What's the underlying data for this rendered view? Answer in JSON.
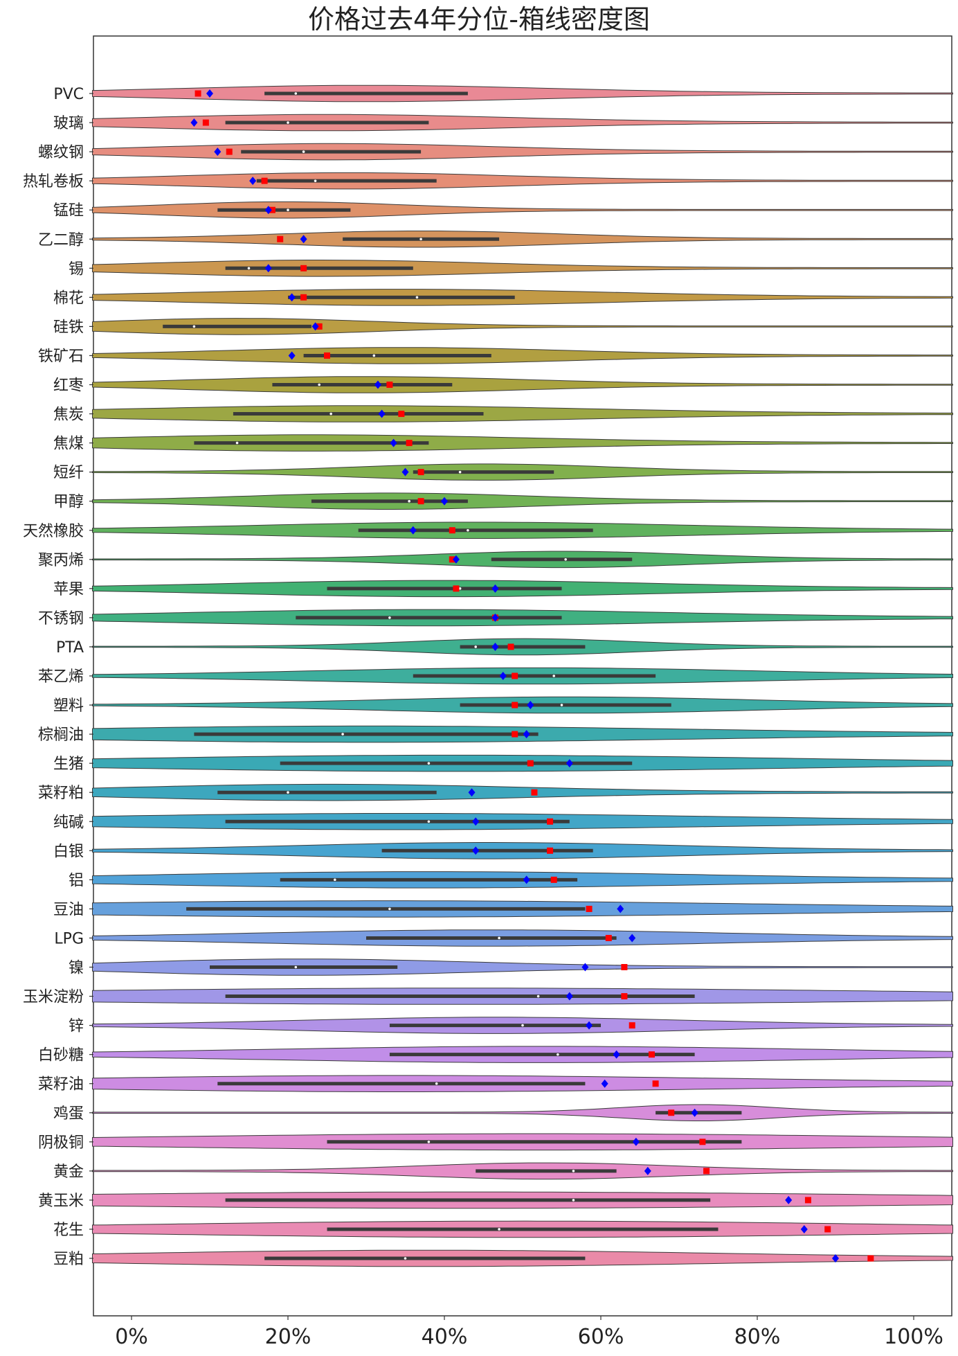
{
  "chart_data": {
    "type": "violin",
    "title": "价格过去4年分位-箱线密度图",
    "xlabel": "",
    "ylabel": "",
    "xlim": [
      -0.05,
      1.05
    ],
    "x_ticks": [
      0,
      0.2,
      0.4,
      0.6,
      0.8,
      1.0
    ],
    "x_tick_labels": [
      "0%",
      "20%",
      "40%",
      "60%",
      "80%",
      "100%"
    ],
    "grid": false,
    "legend": "none",
    "markers": {
      "blue_diamond_color": "#0000ff",
      "red_square_color": "#ff0000"
    },
    "categories": [
      "PVC",
      "玻璃",
      "螺纹钢",
      "热轧卷板",
      "锰硅",
      "乙二醇",
      "锡",
      "棉花",
      "硅铁",
      "铁矿石",
      "红枣",
      "焦炭",
      "焦煤",
      "短纤",
      "甲醇",
      "天然橡胶",
      "聚丙烯",
      "苹果",
      "不锈钢",
      "PTA",
      "苯乙烯",
      "塑料",
      "棕榈油",
      "生猪",
      "菜籽粕",
      "纯碱",
      "白银",
      "铝",
      "豆油",
      "LPG",
      "镍",
      "玉米淀粉",
      "锌",
      "白砂糖",
      "菜籽油",
      "鸡蛋",
      "阴极铜",
      "黄金",
      "黄玉米",
      "花生",
      "豆粕"
    ],
    "series": [
      {
        "name": "blue_diamond",
        "values": [
          0.1,
          0.08,
          0.11,
          0.155,
          0.175,
          0.22,
          0.175,
          0.205,
          0.235,
          0.205,
          0.315,
          0.32,
          0.335,
          0.35,
          0.4,
          0.36,
          0.415,
          0.465,
          0.465,
          0.465,
          0.475,
          0.51,
          0.505,
          0.56,
          0.435,
          0.44,
          0.44,
          0.505,
          0.625,
          0.64,
          0.58,
          0.56,
          0.585,
          0.62,
          0.605,
          0.72,
          0.645,
          0.66,
          0.84,
          0.86,
          0.9
        ]
      },
      {
        "name": "red_square",
        "values": [
          0.085,
          0.095,
          0.125,
          0.17,
          0.18,
          0.19,
          0.22,
          0.22,
          0.24,
          0.25,
          0.33,
          0.345,
          0.355,
          0.37,
          0.37,
          0.41,
          0.41,
          0.415,
          0.465,
          0.485,
          0.49,
          0.49,
          0.49,
          0.51,
          0.515,
          0.535,
          0.535,
          0.54,
          0.585,
          0.61,
          0.63,
          0.63,
          0.64,
          0.665,
          0.67,
          0.69,
          0.73,
          0.735,
          0.865,
          0.89,
          0.945
        ]
      }
    ],
    "box_q1": [
      0.17,
      0.12,
      0.14,
      0.16,
      0.11,
      0.27,
      0.12,
      0.2,
      0.04,
      0.22,
      0.18,
      0.13,
      0.08,
      0.36,
      0.23,
      0.29,
      0.46,
      0.25,
      0.21,
      0.42,
      0.36,
      0.42,
      0.08,
      0.19,
      0.11,
      0.12,
      0.32,
      0.19,
      0.07,
      0.3,
      0.1,
      0.12,
      0.33,
      0.33,
      0.11,
      0.67,
      0.25,
      0.44,
      0.12,
      0.25,
      0.17
    ],
    "box_median": [
      0.21,
      0.2,
      0.22,
      0.235,
      0.2,
      0.37,
      0.15,
      0.365,
      0.08,
      0.31,
      0.24,
      0.255,
      0.135,
      0.42,
      0.355,
      0.43,
      0.555,
      0.42,
      0.33,
      0.44,
      0.54,
      0.55,
      0.27,
      0.38,
      0.2,
      0.38,
      0.44,
      0.26,
      0.33,
      0.47,
      0.21,
      0.52,
      0.5,
      0.545,
      0.39,
      0.72,
      0.38,
      0.565,
      0.565,
      0.47,
      0.35
    ],
    "box_q3": [
      0.43,
      0.38,
      0.37,
      0.39,
      0.28,
      0.47,
      0.36,
      0.49,
      0.23,
      0.46,
      0.41,
      0.45,
      0.38,
      0.54,
      0.43,
      0.59,
      0.64,
      0.55,
      0.55,
      0.58,
      0.67,
      0.69,
      0.52,
      0.64,
      0.39,
      0.56,
      0.59,
      0.57,
      0.58,
      0.62,
      0.34,
      0.72,
      0.6,
      0.72,
      0.58,
      0.78,
      0.78,
      0.62,
      0.74,
      0.75,
      0.58
    ]
  }
}
